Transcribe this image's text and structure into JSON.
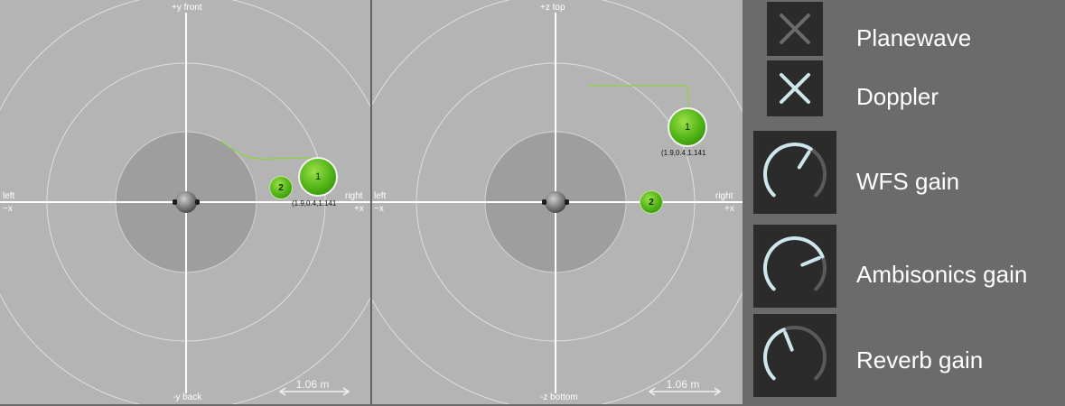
{
  "gear_icon": "⚙",
  "panels": [
    {
      "top_label": "+y front",
      "bottom_label": "-y back",
      "left_label": "left",
      "left_sign": "−x",
      "right_label": "right",
      "right_sign": "+x",
      "scale_label": "1.06 m",
      "sources": [
        {
          "id": "1",
          "coord": "(1.9,0.4,1.141"
        },
        {
          "id": "2"
        }
      ]
    },
    {
      "top_label": "+z top",
      "bottom_label": "-z bottom",
      "left_label": "left",
      "left_sign": "−x",
      "right_label": "right",
      "right_sign": "+x",
      "scale_label": "1.06 m",
      "sources": [
        {
          "id": "1",
          "coord": "(1.9,0.4,1.141"
        },
        {
          "id": "2"
        }
      ]
    }
  ],
  "controls": {
    "planewave": {
      "label": "Planewave",
      "enabled": false
    },
    "doppler": {
      "label": "Doppler",
      "enabled": true
    },
    "wfs_gain": {
      "label": "WFS gain",
      "value": 0.62
    },
    "ambisonics_gain": {
      "label": "Ambisonics gain",
      "value": 0.75
    },
    "reverb_gain": {
      "label": "Reverb gain",
      "value": 0.42
    }
  },
  "colors": {
    "panel_bg": "#b4b4b4",
    "center_disc": "#9e9e9e",
    "ring": "#dedede",
    "axis": "#ffffff",
    "trail": "#8fd23e",
    "source_green": "#4fb214",
    "control_bg": "#2b2b2b",
    "knob_active": "#cde6ec",
    "knob_track": "#5a5a5a",
    "toggle_off": "#6a6a6a",
    "toggle_on": "#cde6ec"
  }
}
